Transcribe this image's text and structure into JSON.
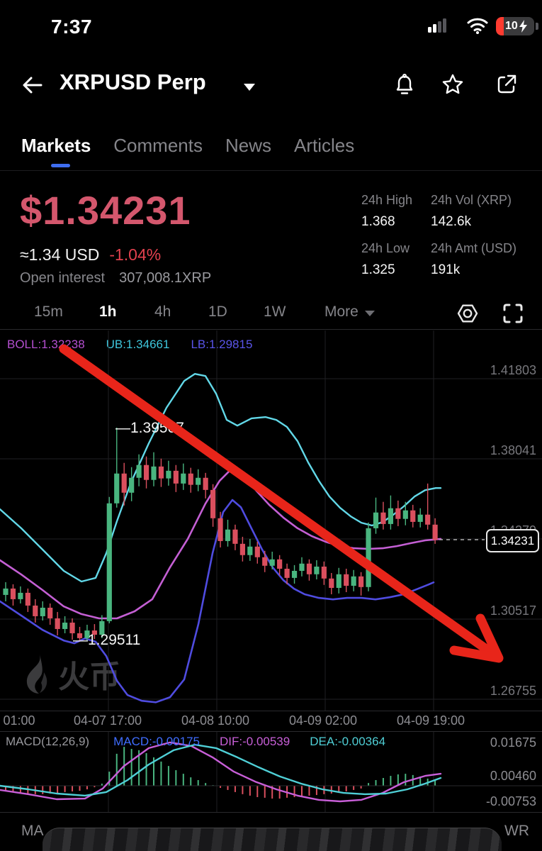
{
  "status_bar": {
    "time": "7:37",
    "battery_percent": "10"
  },
  "header": {
    "title": "XRPUSD Perp"
  },
  "tabs": [
    {
      "label": "Markets",
      "active": true
    },
    {
      "label": "Comments",
      "active": false
    },
    {
      "label": "News",
      "active": false
    },
    {
      "label": "Articles",
      "active": false
    }
  ],
  "price": {
    "value": "$1.34231",
    "approx": "≈1.34 USD",
    "change": "-1.04%",
    "open_interest_label": "Open interest",
    "open_interest_value": "307,008.1XRP"
  },
  "stats": [
    {
      "label": "24h High",
      "value": "1.368"
    },
    {
      "label": "24h Vol (XRP)",
      "value": "142.6k"
    },
    {
      "label": "24h Low",
      "value": "1.325"
    },
    {
      "label": "24h Amt (USD)",
      "value": "191k"
    }
  ],
  "toolbar": {
    "timeframes": [
      "15m",
      "1h",
      "4h",
      "1D",
      "1W"
    ],
    "active_timeframe": "1h",
    "more_label": "More"
  },
  "chart_data": {
    "type": "candlestick",
    "interval": "1h",
    "indicator_labels": [
      {
        "text": "BOLL:1.32238",
        "color": "#b44fd0"
      },
      {
        "text": "UB:1.34661",
        "color": "#3ec6dc"
      },
      {
        "text": "LB:1.29815",
        "color": "#5a55ea"
      }
    ],
    "y_axis_labels": [
      "1.41803",
      "1.38041",
      "1.34279",
      "1.30517",
      "1.26755"
    ],
    "x_axis_labels": [
      "01:00",
      "04-07 17:00",
      "04-08 10:00",
      "04-09 02:00",
      "04-09 19:00"
    ],
    "current_price": "1.34231",
    "high_annotation": "—1.39507",
    "low_annotation": "—1.29511",
    "watermark": "火币",
    "candles": [
      [
        1.3165,
        1.3195,
        1.3225,
        1.3135
      ],
      [
        1.3195,
        1.3145,
        1.3215,
        1.3115
      ],
      [
        1.3145,
        1.3175,
        1.3205,
        1.3125
      ],
      [
        1.3175,
        1.3115,
        1.3195,
        1.3085
      ],
      [
        1.3115,
        1.3065,
        1.3145,
        1.3035
      ],
      [
        1.3065,
        1.3105,
        1.3135,
        1.3045
      ],
      [
        1.3105,
        1.3055,
        1.3125,
        1.3025
      ],
      [
        1.3055,
        1.3005,
        1.3085,
        1.2975
      ],
      [
        1.3005,
        1.3035,
        1.3065,
        1.2985
      ],
      [
        1.3035,
        1.2985,
        1.3055,
        1.2955
      ],
      [
        1.2985,
        1.2962,
        1.3015,
        1.29511
      ],
      [
        1.2962,
        1.2998,
        1.3025,
        1.2951
      ],
      [
        1.2998,
        1.2978,
        1.3028,
        1.2958
      ],
      [
        1.2978,
        1.3042,
        1.307,
        1.2962
      ],
      [
        1.3042,
        1.3595,
        1.3625,
        1.3032
      ],
      [
        1.3595,
        1.3735,
        1.39507,
        1.3575
      ],
      [
        1.3735,
        1.3645,
        1.3785,
        1.3585
      ],
      [
        1.3645,
        1.3715,
        1.3765,
        1.3605
      ],
      [
        1.3715,
        1.3775,
        1.3825,
        1.3675
      ],
      [
        1.3775,
        1.3705,
        1.3815,
        1.3665
      ],
      [
        1.3705,
        1.3768,
        1.3835,
        1.3675
      ],
      [
        1.3768,
        1.3712,
        1.3805,
        1.3672
      ],
      [
        1.3712,
        1.3748,
        1.3795,
        1.3678
      ],
      [
        1.3748,
        1.3688,
        1.3775,
        1.3648
      ],
      [
        1.3688,
        1.3735,
        1.3782,
        1.3658
      ],
      [
        1.3735,
        1.3682,
        1.3762,
        1.3645
      ],
      [
        1.3682,
        1.3715,
        1.3755,
        1.3652
      ],
      [
        1.3715,
        1.3658,
        1.3738,
        1.3618
      ],
      [
        1.3658,
        1.3525,
        1.3685,
        1.3485
      ],
      [
        1.3525,
        1.3418,
        1.3555,
        1.3388
      ],
      [
        1.3418,
        1.3472,
        1.3518,
        1.3392
      ],
      [
        1.3472,
        1.3405,
        1.3495,
        1.3375
      ],
      [
        1.3405,
        1.3352,
        1.3438,
        1.3322
      ],
      [
        1.3352,
        1.3392,
        1.3428,
        1.3325
      ],
      [
        1.3392,
        1.3342,
        1.3415,
        1.3312
      ],
      [
        1.3342,
        1.3302,
        1.3372,
        1.3272
      ],
      [
        1.3302,
        1.3332,
        1.3368,
        1.3285
      ],
      [
        1.3332,
        1.3288,
        1.3352,
        1.3258
      ],
      [
        1.3288,
        1.3245,
        1.3312,
        1.3215
      ],
      [
        1.3245,
        1.3278,
        1.3305,
        1.3218
      ],
      [
        1.3278,
        1.3312,
        1.3342,
        1.3252
      ],
      [
        1.3312,
        1.3262,
        1.3332,
        1.3232
      ],
      [
        1.3262,
        1.3298,
        1.3328,
        1.3238
      ],
      [
        1.3298,
        1.3242,
        1.3322,
        1.3212
      ],
      [
        1.3242,
        1.3198,
        1.3268,
        1.3168
      ],
      [
        1.3198,
        1.3262,
        1.3292,
        1.3172
      ],
      [
        1.3262,
        1.3208,
        1.3288,
        1.3178
      ],
      [
        1.3208,
        1.3252,
        1.3282,
        1.3182
      ],
      [
        1.3252,
        1.3202,
        1.3272,
        1.3162
      ],
      [
        1.3202,
        1.3478,
        1.3505,
        1.3182
      ],
      [
        1.3478,
        1.3552,
        1.3622,
        1.3452
      ],
      [
        1.3552,
        1.3498,
        1.3602,
        1.3472
      ],
      [
        1.3498,
        1.3572,
        1.3632,
        1.3472
      ],
      [
        1.3572,
        1.3522,
        1.3608,
        1.3488
      ],
      [
        1.3522,
        1.3562,
        1.3602,
        1.3492
      ],
      [
        1.3562,
        1.3508,
        1.3588,
        1.3482
      ],
      [
        1.3508,
        1.3542,
        1.3572,
        1.3482
      ],
      [
        1.3542,
        1.3495,
        1.3688,
        1.3472
      ],
      [
        1.3495,
        1.34231,
        1.3525,
        1.3405
      ]
    ],
    "boll_upper": [
      [
        0,
        1.3567
      ],
      [
        30,
        1.3478
      ],
      [
        60,
        1.3378
      ],
      [
        90,
        1.3278
      ],
      [
        115,
        1.3228
      ],
      [
        135,
        1.3245
      ],
      [
        150,
        1.3361
      ],
      [
        165,
        1.3511
      ],
      [
        185,
        1.3694
      ],
      [
        210,
        1.3877
      ],
      [
        235,
        1.4044
      ],
      [
        260,
        1.417
      ],
      [
        275,
        1.4203
      ],
      [
        290,
        1.4193
      ],
      [
        305,
        1.411
      ],
      [
        320,
        1.3987
      ],
      [
        335,
        1.396
      ],
      [
        355,
        1.3994
      ],
      [
        375,
        1.4
      ],
      [
        390,
        1.3987
      ],
      [
        405,
        1.3954
      ],
      [
        420,
        1.3887
      ],
      [
        435,
        1.3787
      ],
      [
        450,
        1.3701
      ],
      [
        465,
        1.3627
      ],
      [
        480,
        1.3574
      ],
      [
        495,
        1.3534
      ],
      [
        510,
        1.3504
      ],
      [
        525,
        1.3491
      ],
      [
        540,
        1.3507
      ],
      [
        555,
        1.3541
      ],
      [
        570,
        1.3581
      ],
      [
        585,
        1.3627
      ],
      [
        600,
        1.3657
      ],
      [
        615,
        1.3667
      ],
      [
        622,
        1.3667
      ]
    ],
    "boll_mid": [
      [
        0,
        1.3328
      ],
      [
        30,
        1.3261
      ],
      [
        60,
        1.3188
      ],
      [
        90,
        1.3111
      ],
      [
        115,
        1.3075
      ],
      [
        140,
        1.3055
      ],
      [
        165,
        1.3055
      ],
      [
        190,
        1.3088
      ],
      [
        215,
        1.3145
      ],
      [
        240,
        1.3295
      ],
      [
        265,
        1.3428
      ],
      [
        290,
        1.3594
      ],
      [
        310,
        1.3701
      ],
      [
        325,
        1.3751
      ],
      [
        340,
        1.3734
      ],
      [
        360,
        1.3661
      ],
      [
        380,
        1.3588
      ],
      [
        400,
        1.3528
      ],
      [
        420,
        1.3478
      ],
      [
        440,
        1.3441
      ],
      [
        460,
        1.3414
      ],
      [
        480,
        1.3394
      ],
      [
        500,
        1.3384
      ],
      [
        520,
        1.3381
      ],
      [
        540,
        1.3384
      ],
      [
        560,
        1.3394
      ],
      [
        580,
        1.3408
      ],
      [
        600,
        1.3421
      ],
      [
        622,
        1.3428
      ]
    ],
    "boll_lower": [
      [
        0,
        1.3135
      ],
      [
        30,
        1.3068
      ],
      [
        60,
        1.3001
      ],
      [
        90,
        1.2951
      ],
      [
        105,
        1.2938
      ],
      [
        120,
        1.2961
      ],
      [
        135,
        1.2945
      ],
      [
        150,
        1.2878
      ],
      [
        165,
        1.2762
      ],
      [
        180,
        1.2695
      ],
      [
        200,
        1.2668
      ],
      [
        220,
        1.2661
      ],
      [
        240,
        1.2685
      ],
      [
        260,
        1.2768
      ],
      [
        280,
        1.3028
      ],
      [
        300,
        1.3361
      ],
      [
        315,
        1.3554
      ],
      [
        328,
        1.3611
      ],
      [
        340,
        1.3577
      ],
      [
        355,
        1.3477
      ],
      [
        370,
        1.3378
      ],
      [
        385,
        1.3294
      ],
      [
        400,
        1.3234
      ],
      [
        415,
        1.3194
      ],
      [
        430,
        1.3168
      ],
      [
        450,
        1.3151
      ],
      [
        470,
        1.3144
      ],
      [
        490,
        1.3151
      ],
      [
        510,
        1.3151
      ],
      [
        530,
        1.3144
      ],
      [
        550,
        1.3154
      ],
      [
        570,
        1.3168
      ],
      [
        590,
        1.3194
      ],
      [
        605,
        1.3214
      ],
      [
        612,
        1.3224
      ]
    ],
    "colors": {
      "up": "#49b57f",
      "down": "#da4f5e",
      "upper": "#62d8e8",
      "mid": "#c45fd4",
      "lower": "#4f4ce0",
      "arrow": "#e8251a"
    },
    "drawing_arrow": {
      "start": [
        90,
        492
      ],
      "end": [
        700,
        925
      ],
      "head": [
        [
          678,
          872
        ],
        [
          704,
          928
        ],
        [
          641,
          917
        ]
      ]
    }
  },
  "macd_data": {
    "params_label": "MACD(12,26,9)",
    "macd_label": "MACD:-0.00175",
    "dif_label": "DIF:-0.00539",
    "dea_label": "DEA:-0.00364",
    "y_axis_labels": [
      "0.01675",
      "0.00460",
      "-0.00753"
    ],
    "histogram": [
      -0.0027,
      -0.003,
      -0.0034,
      -0.0037,
      -0.004,
      -0.004,
      -0.0037,
      -0.0034,
      -0.003,
      -0.0027,
      -0.0024,
      -0.0017,
      -0.0007,
      0.001,
      0.0067,
      0.0152,
      0.0185,
      0.0175,
      0.0169,
      0.0155,
      0.0135,
      0.0115,
      0.0094,
      0.0074,
      0.0057,
      0.004,
      0.0027,
      0.0013,
      0.0003,
      -0.001,
      -0.002,
      -0.003,
      -0.004,
      -0.0047,
      -0.0054,
      -0.0057,
      -0.0061,
      -0.0061,
      -0.0057,
      -0.0054,
      -0.0051,
      -0.0047,
      -0.0044,
      -0.004,
      -0.0037,
      -0.0034,
      -0.0027,
      -0.002,
      -0.0013,
      0.0013,
      0.0027,
      0.0037,
      0.0047,
      0.0054,
      0.0057,
      0.0051,
      0.0044,
      0.0034,
      0.0027
    ],
    "dif_line": [
      [
        0,
        -0.002
      ],
      [
        40,
        -0.004
      ],
      [
        80,
        -0.0064
      ],
      [
        120,
        -0.0061
      ],
      [
        145,
        -0.0013
      ],
      [
        175,
        0.0094
      ],
      [
        210,
        0.0179
      ],
      [
        240,
        0.0206
      ],
      [
        270,
        0.0189
      ],
      [
        300,
        0.0135
      ],
      [
        330,
        0.0067
      ],
      [
        360,
        0.002
      ],
      [
        390,
        -0.0017
      ],
      [
        420,
        -0.0047
      ],
      [
        450,
        -0.0067
      ],
      [
        480,
        -0.0074
      ],
      [
        510,
        -0.0067
      ],
      [
        540,
        -0.0034
      ],
      [
        570,
        0.0017
      ],
      [
        600,
        0.0047
      ],
      [
        622,
        0.0057
      ]
    ],
    "dea_line": [
      [
        0,
        0.0
      ],
      [
        40,
        -0.0017
      ],
      [
        80,
        -0.0037
      ],
      [
        120,
        -0.0047
      ],
      [
        150,
        -0.003
      ],
      [
        180,
        0.0027
      ],
      [
        210,
        0.0101
      ],
      [
        245,
        0.0169
      ],
      [
        275,
        0.0195
      ],
      [
        305,
        0.0179
      ],
      [
        335,
        0.0135
      ],
      [
        365,
        0.0088
      ],
      [
        395,
        0.0044
      ],
      [
        425,
        0.001
      ],
      [
        455,
        -0.0017
      ],
      [
        485,
        -0.0034
      ],
      [
        515,
        -0.004
      ],
      [
        545,
        -0.0037
      ],
      [
        575,
        -0.0017
      ],
      [
        600,
        0.001
      ],
      [
        622,
        0.0037
      ]
    ],
    "colors": {
      "dif": "#c85fd8",
      "dea": "#4fcfd6",
      "macd_value": "#3f6dfe"
    }
  },
  "indicator_bar": {
    "left": "MA",
    "right": "WR"
  },
  "colors": {
    "price_down": "#d4576d",
    "change_red": "#e2414e",
    "accent_blue": "#3e6df0"
  }
}
